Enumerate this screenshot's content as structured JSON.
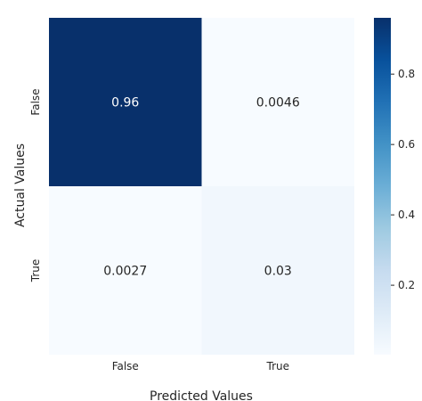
{
  "chart_data": {
    "type": "heatmap",
    "title": "",
    "xlabel": "Predicted Values",
    "ylabel": "Actual Values",
    "x_categories": [
      "False",
      "True"
    ],
    "y_categories": [
      "False",
      "True"
    ],
    "values": [
      [
        0.96,
        0.0046
      ],
      [
        0.0027,
        0.03
      ]
    ],
    "cell_labels": [
      [
        "0.96",
        "0.0046"
      ],
      [
        "0.0027",
        "0.03"
      ]
    ],
    "colormap": "Blues",
    "colorbar": {
      "vmin": 0.0027,
      "vmax": 0.96,
      "ticks": [
        0.2,
        0.4,
        0.6,
        0.8
      ],
      "tick_labels": [
        "0.2",
        "0.4",
        "0.6",
        "0.8"
      ]
    },
    "colors": {
      "low": "#f7fbff",
      "high": "#08306b",
      "text_on_dark": "#ffffff",
      "text_on_light": "#262626"
    }
  }
}
